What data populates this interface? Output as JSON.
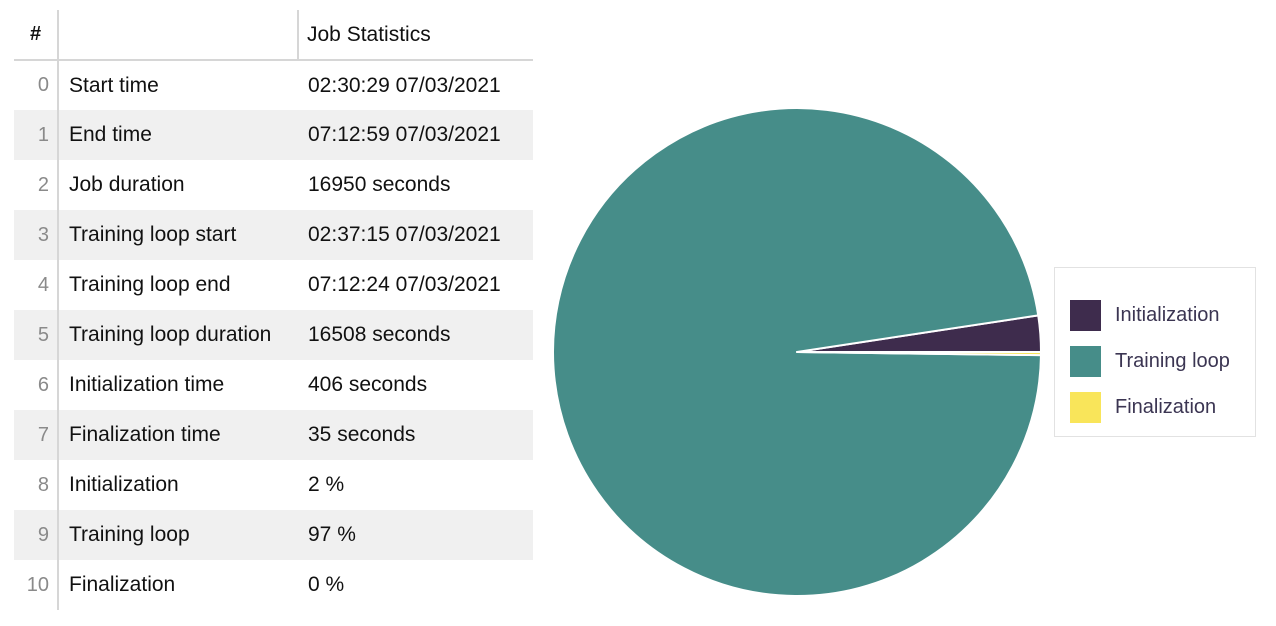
{
  "table": {
    "headers": {
      "index": "#",
      "metric": "",
      "value": "Job Statistics"
    },
    "rows": [
      {
        "index": "0",
        "metric": "Start time",
        "value": "02:30:29 07/03/2021"
      },
      {
        "index": "1",
        "metric": "End time",
        "value": "07:12:59 07/03/2021"
      },
      {
        "index": "2",
        "metric": "Job duration",
        "value": "16950 seconds"
      },
      {
        "index": "3",
        "metric": "Training loop start",
        "value": "02:37:15 07/03/2021"
      },
      {
        "index": "4",
        "metric": "Training loop end",
        "value": "07:12:24 07/03/2021"
      },
      {
        "index": "5",
        "metric": "Training loop duration",
        "value": "16508 seconds"
      },
      {
        "index": "6",
        "metric": "Initialization time",
        "value": "406 seconds"
      },
      {
        "index": "7",
        "metric": "Finalization time",
        "value": "35 seconds"
      },
      {
        "index": "8",
        "metric": "Initialization",
        "value": "2 %"
      },
      {
        "index": "9",
        "metric": "Training loop",
        "value": "97 %"
      },
      {
        "index": "10",
        "metric": "Finalization",
        "value": "0 %"
      }
    ]
  },
  "chart_data": {
    "type": "pie",
    "categories": [
      "Initialization",
      "Training loop",
      "Finalization"
    ],
    "values": [
      406,
      16508,
      35
    ],
    "colors": [
      "#3e2c4d",
      "#468d89",
      "#f9e55a"
    ],
    "start_angle_deg": 0,
    "direction": "counterclockwise",
    "legend_position": "right"
  }
}
